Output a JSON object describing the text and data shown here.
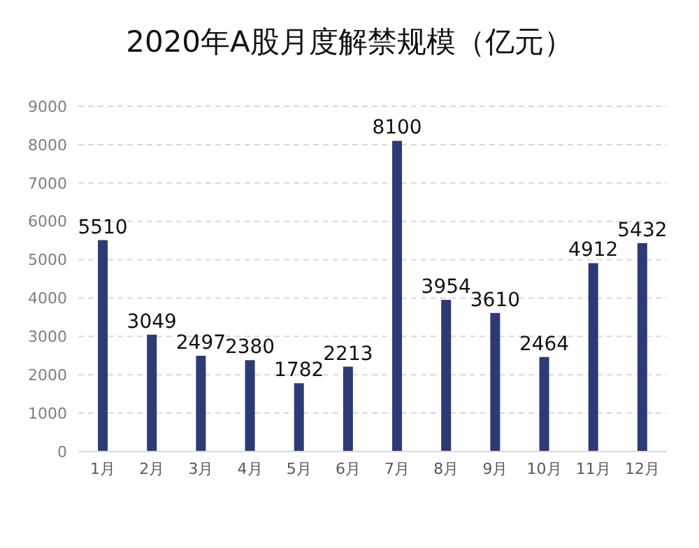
{
  "chart_data": {
    "type": "bar",
    "title": "2020年A股月度解禁规模（亿元）",
    "categories": [
      "1月",
      "2月",
      "3月",
      "4月",
      "5月",
      "6月",
      "7月",
      "8月",
      "9月",
      "10月",
      "11月",
      "12月"
    ],
    "values": [
      5510,
      3049,
      2497,
      2380,
      1782,
      2213,
      8100,
      3954,
      3610,
      2464,
      4912,
      5432
    ],
    "color": "#2e3a75",
    "ylim": [
      0,
      9000
    ],
    "yticks": [
      0,
      1000,
      2000,
      3000,
      4000,
      5000,
      6000,
      7000,
      8000,
      9000
    ],
    "grid": "y",
    "line_style": "dashed",
    "data_labels": true
  }
}
